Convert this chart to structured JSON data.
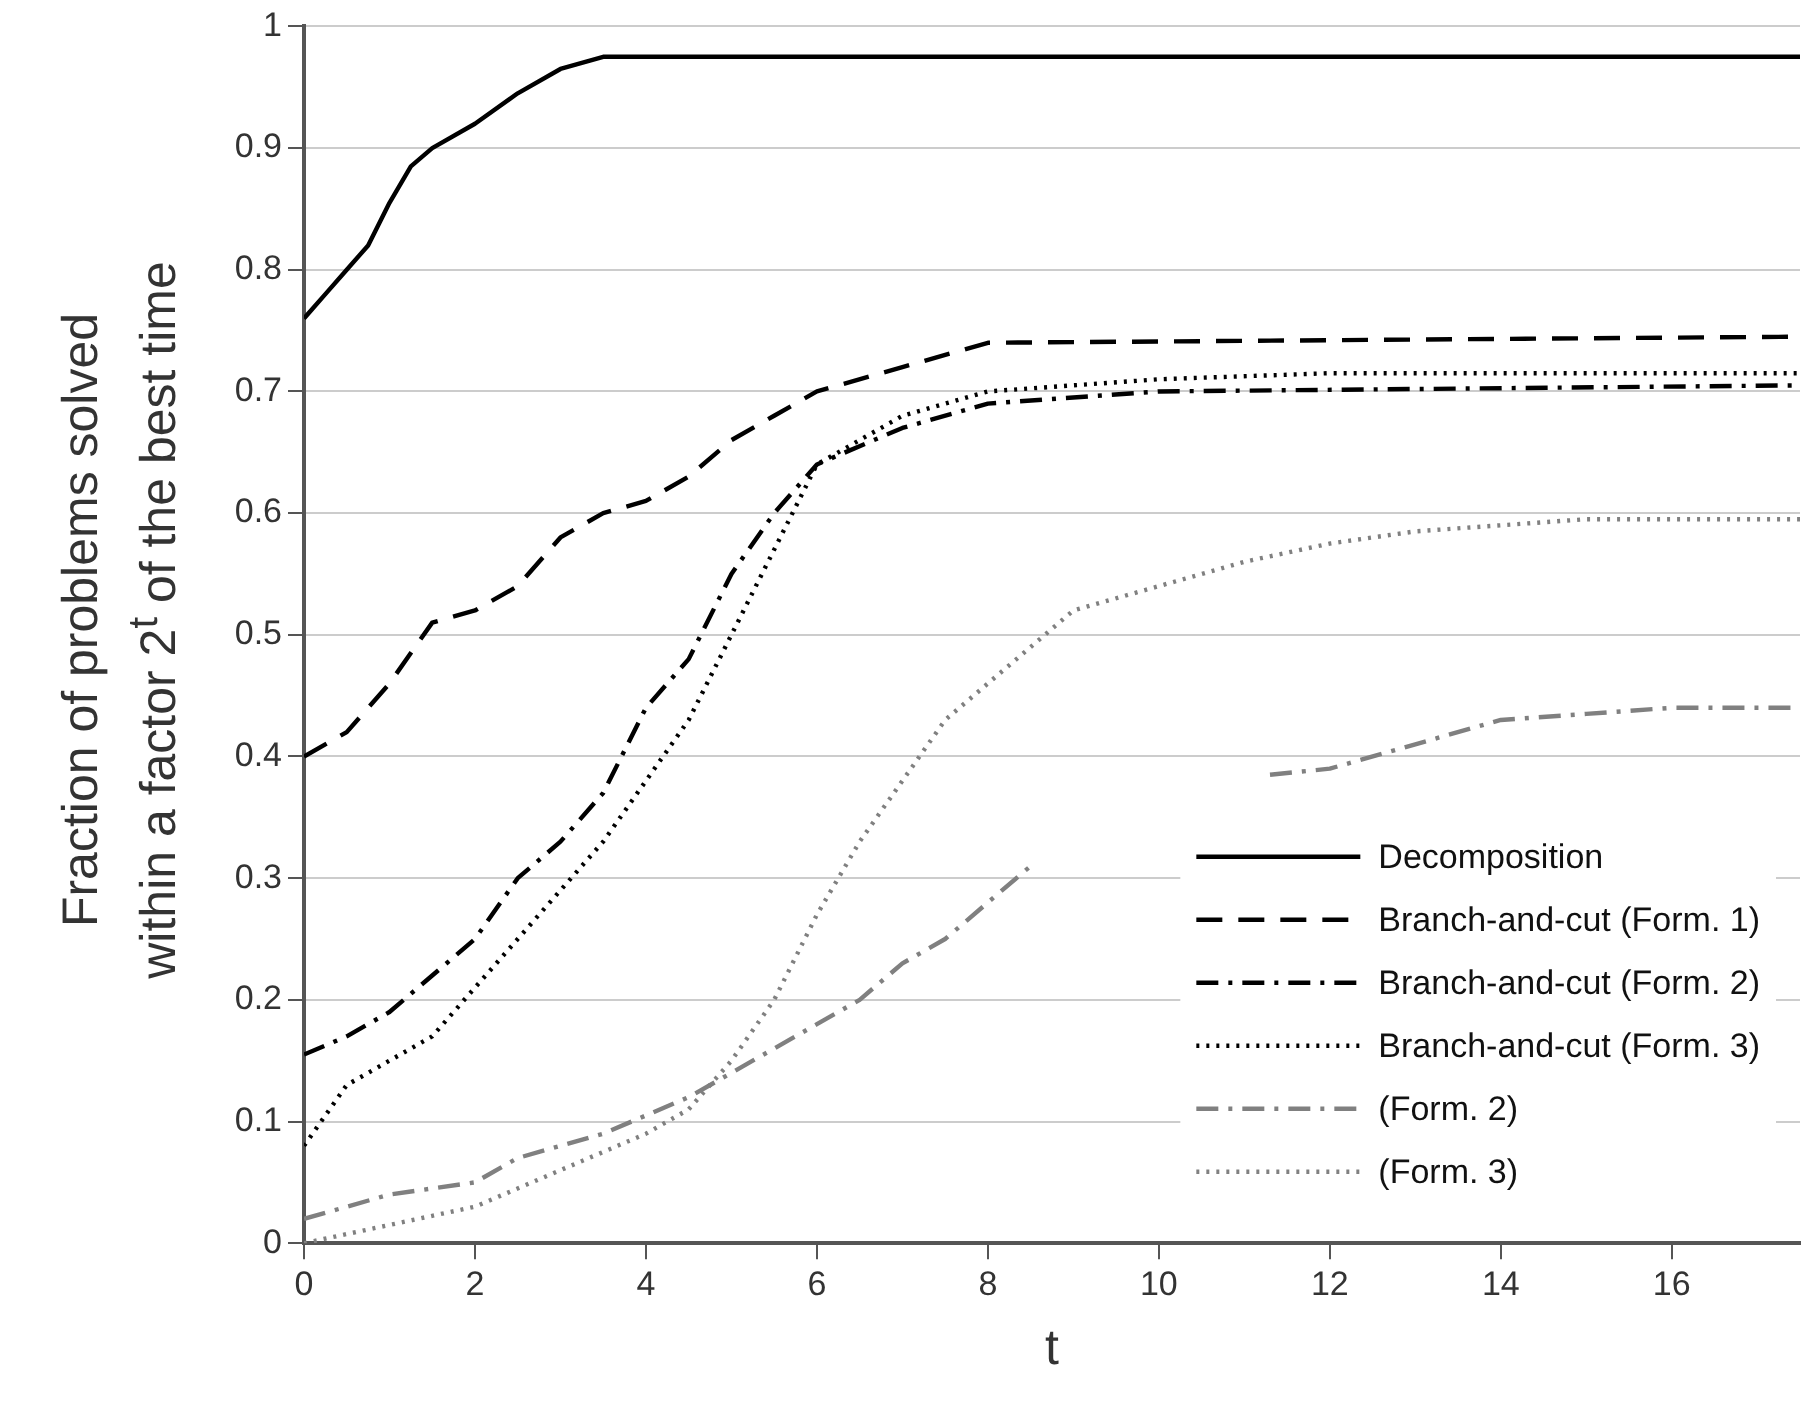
{
  "chart_data": {
    "type": "line",
    "xlabel": "t",
    "ylabel": "Fraction of problems solved\nwithin a factor 2$^{t}$ of the best time",
    "xlim": [
      0,
      17.5
    ],
    "xticks": [
      0,
      2,
      4,
      6,
      8,
      10,
      12,
      14,
      16
    ],
    "ylim": [
      0,
      1
    ],
    "yticks": [
      0,
      0.1,
      0.2,
      0.3,
      0.4,
      0.5,
      0.6,
      0.7,
      0.8,
      0.9,
      1
    ],
    "grid": "y",
    "legend": "bottom right",
    "marker": "none",
    "series": [
      {
        "name": "Decomposition",
        "color": "#000000",
        "line_style": "solid",
        "x": [
          0,
          0.25,
          0.5,
          0.75,
          1,
          1.25,
          1.5,
          2,
          2.5,
          3,
          3.5,
          17.5
        ],
        "values": [
          0.76,
          0.78,
          0.8,
          0.82,
          0.855,
          0.885,
          0.9,
          0.92,
          0.945,
          0.965,
          0.975,
          0.975
        ]
      },
      {
        "name": "Branch-and-cut (Form. 1)",
        "color": "#000000",
        "line_style": "dashed",
        "x": [
          0,
          0.5,
          1,
          1.5,
          2,
          2.5,
          3,
          3.5,
          4,
          4.5,
          5,
          5.5,
          6,
          7,
          8,
          17.5
        ],
        "values": [
          0.4,
          0.42,
          0.46,
          0.51,
          0.52,
          0.54,
          0.58,
          0.6,
          0.61,
          0.63,
          0.66,
          0.68,
          0.7,
          0.72,
          0.74,
          0.745
        ]
      },
      {
        "name": "Branch-and-cut (Form. 2)",
        "color": "#000000",
        "line_style": "dashdot",
        "x": [
          0,
          0.5,
          1,
          1.5,
          2,
          2.5,
          3,
          3.5,
          4,
          4.5,
          5,
          5.5,
          6,
          7,
          8,
          10,
          17.5
        ],
        "values": [
          0.155,
          0.17,
          0.19,
          0.22,
          0.25,
          0.3,
          0.33,
          0.37,
          0.44,
          0.48,
          0.55,
          0.6,
          0.64,
          0.67,
          0.69,
          0.7,
          0.705
        ]
      },
      {
        "name": "Branch-and-cut (Form. 3)",
        "color": "#000000",
        "line_style": "dotted",
        "x": [
          0,
          0.5,
          1,
          1.5,
          2,
          2.5,
          3,
          3.5,
          4,
          4.5,
          5,
          5.5,
          6,
          7,
          8,
          10,
          12,
          17.5
        ],
        "values": [
          0.08,
          0.13,
          0.15,
          0.17,
          0.21,
          0.25,
          0.29,
          0.33,
          0.38,
          0.43,
          0.5,
          0.57,
          0.64,
          0.68,
          0.7,
          0.71,
          0.715,
          0.715
        ]
      },
      {
        "name": "(Form. 2)",
        "color": "#808080",
        "line_style": "dashdot",
        "x": [
          0,
          0.5,
          1,
          2,
          2.5,
          3,
          3.5,
          4,
          4.5,
          5,
          6,
          6.5,
          7,
          7.5,
          8,
          8.5,
          10,
          11.3,
          12,
          13,
          14,
          15,
          16,
          17.5
        ],
        "values": [
          0.02,
          0.03,
          0.04,
          0.05,
          0.07,
          0.08,
          0.09,
          0.105,
          0.12,
          0.14,
          0.18,
          0.2,
          0.23,
          0.25,
          0.28,
          0.31,
          null,
          0.385,
          0.39,
          0.41,
          0.43,
          0.435,
          0.44,
          0.44
        ]
      },
      {
        "name": "(Form. 3)",
        "color": "#808080",
        "line_style": "dotted",
        "x": [
          0,
          1,
          2,
          3,
          4,
          4.5,
          5,
          5.5,
          6,
          6.5,
          7,
          7.5,
          8,
          8.5,
          9,
          10,
          11,
          12,
          13,
          14,
          15,
          17.5
        ],
        "values": [
          0,
          0.015,
          0.03,
          0.06,
          0.09,
          0.11,
          0.15,
          0.2,
          0.27,
          0.33,
          0.38,
          0.43,
          0.46,
          0.49,
          0.52,
          0.54,
          0.56,
          0.575,
          0.585,
          0.59,
          0.595,
          0.595
        ]
      }
    ]
  }
}
